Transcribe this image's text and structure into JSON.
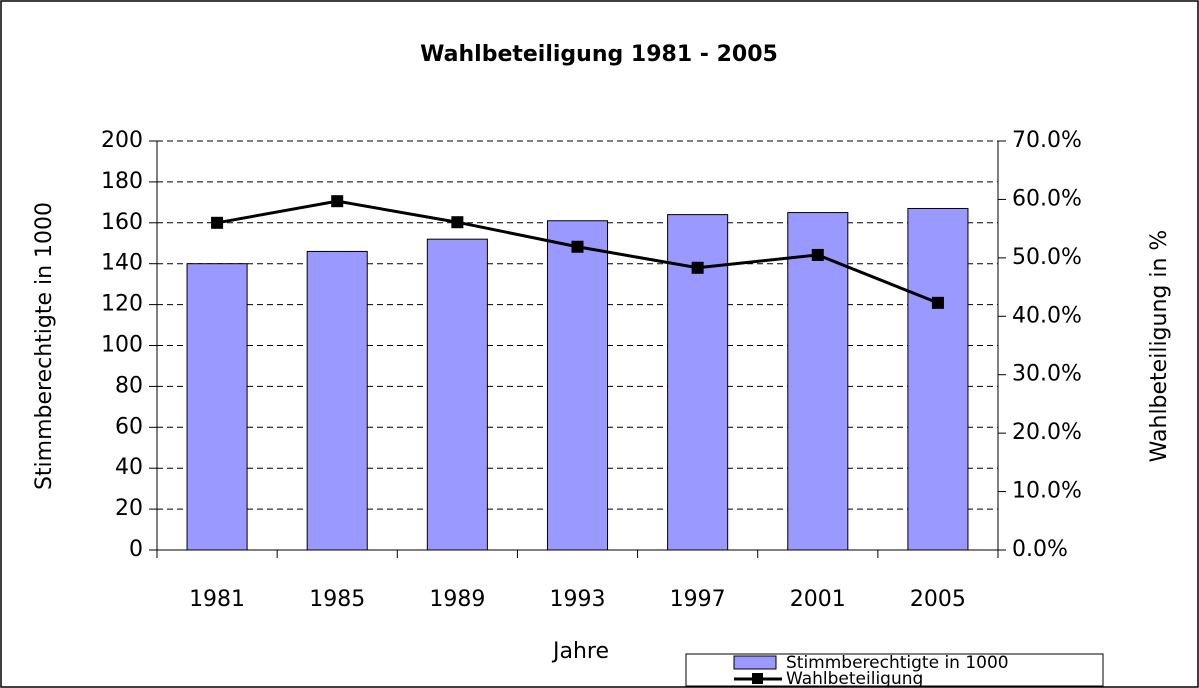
{
  "chart_data": {
    "type": "bar_line",
    "title": "Wahlbeteiligung 1981 - 2005",
    "x_label": "Jahre",
    "y_label": "Stimmberechtigte in 1000",
    "y2_label": "Wahlbeteiligung in %",
    "categories": [
      "1981",
      "1985",
      "1989",
      "1993",
      "1997",
      "2001",
      "2005"
    ],
    "series": [
      {
        "name": "Stimmberechtigte in 1000",
        "type": "bar",
        "color": "#9999ff",
        "values": [
          140,
          146,
          152,
          161,
          164,
          165,
          167
        ]
      },
      {
        "name": "Wahlbeteiligung",
        "type": "line",
        "axis": "y2",
        "color": "#000000",
        "values": [
          56.0,
          59.7,
          56.1,
          51.9,
          48.3,
          50.5,
          42.3
        ]
      }
    ],
    "ylim": [
      0,
      200
    ],
    "yticks": [
      0,
      20,
      40,
      60,
      80,
      100,
      120,
      140,
      160,
      180,
      200
    ],
    "y2lim": [
      0,
      70
    ],
    "y2ticks": [
      {
        "value": 0,
        "label": "0.0%"
      },
      {
        "value": 10,
        "label": "10.0%"
      },
      {
        "value": 20,
        "label": "20.0%"
      },
      {
        "value": 30,
        "label": "30.0%"
      },
      {
        "value": 40,
        "label": "40.0%"
      },
      {
        "value": 50,
        "label": "50.0%"
      },
      {
        "value": 60,
        "label": "60.0%"
      },
      {
        "value": 70,
        "label": "70.0%"
      }
    ],
    "grid": true,
    "legend": "bottom-right"
  }
}
